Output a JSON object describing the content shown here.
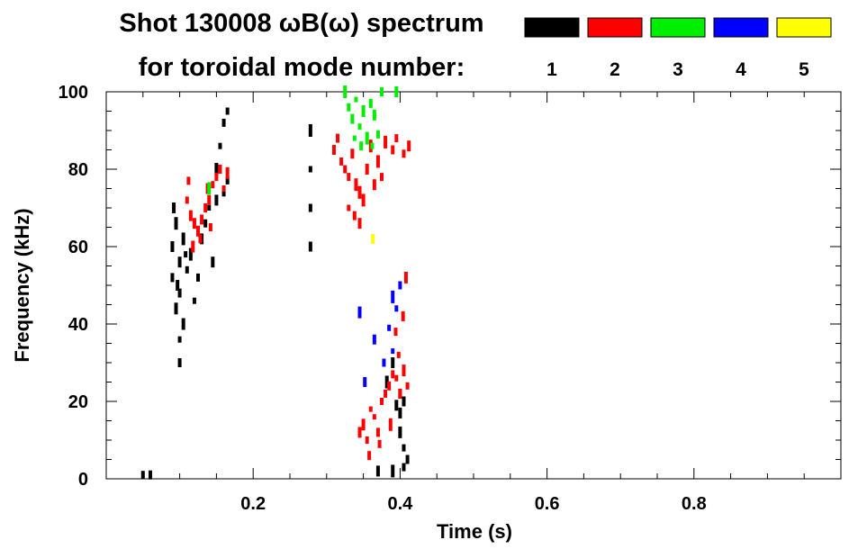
{
  "chart_data": {
    "type": "heatmap",
    "title": "Shot 130008 ωB(ω) spectrum",
    "subtitle": "for toroidal mode number:",
    "xlabel": "Time (s)",
    "ylabel": "Frequency (kHz)",
    "xlim": [
      0.0,
      1.0
    ],
    "ylim": [
      0,
      100
    ],
    "x_ticks": [
      {
        "value": 0.2,
        "label": "0.2"
      },
      {
        "value": 0.4,
        "label": "0.4"
      },
      {
        "value": 0.6,
        "label": "0.6"
      },
      {
        "value": 0.8,
        "label": "0.8"
      }
    ],
    "y_ticks": [
      {
        "value": 0,
        "label": "0"
      },
      {
        "value": 20,
        "label": "20"
      },
      {
        "value": 40,
        "label": "40"
      },
      {
        "value": 60,
        "label": "60"
      },
      {
        "value": 80,
        "label": "80"
      },
      {
        "value": 100,
        "label": "100"
      }
    ],
    "legend": [
      {
        "label": "1",
        "color": "#000000"
      },
      {
        "label": "2",
        "color": "#ff0000"
      },
      {
        "label": "3",
        "color": "#00ee00"
      },
      {
        "label": "4",
        "color": "#0000ff"
      },
      {
        "label": "5",
        "color": "#ffff00"
      }
    ],
    "series": [
      {
        "name": "1",
        "color": "#000000",
        "points": [
          [
            0.05,
            1
          ],
          [
            0.06,
            1
          ],
          [
            0.09,
            52
          ],
          [
            0.09,
            60
          ],
          [
            0.095,
            44
          ],
          [
            0.1,
            56
          ],
          [
            0.1,
            48
          ],
          [
            0.105,
            62
          ],
          [
            0.1,
            36
          ],
          [
            0.1,
            30
          ],
          [
            0.105,
            40
          ],
          [
            0.11,
            54
          ],
          [
            0.115,
            58
          ],
          [
            0.12,
            46
          ],
          [
            0.125,
            52
          ],
          [
            0.13,
            62
          ],
          [
            0.135,
            66
          ],
          [
            0.14,
            70
          ],
          [
            0.145,
            56
          ],
          [
            0.15,
            72
          ],
          [
            0.16,
            74
          ],
          [
            0.165,
            77
          ],
          [
            0.155,
            86
          ],
          [
            0.16,
            92
          ],
          [
            0.165,
            95
          ],
          [
            0.15,
            80
          ],
          [
            0.095,
            66
          ],
          [
            0.092,
            70
          ],
          [
            0.097,
            50
          ],
          [
            0.108,
            58
          ],
          [
            0.278,
            90
          ],
          [
            0.278,
            80
          ],
          [
            0.278,
            70
          ],
          [
            0.278,
            60
          ],
          [
            0.382,
            25
          ],
          [
            0.39,
            30
          ],
          [
            0.395,
            19
          ],
          [
            0.4,
            17
          ],
          [
            0.405,
            20
          ],
          [
            0.405,
            8
          ],
          [
            0.405,
            3
          ],
          [
            0.41,
            5
          ],
          [
            0.39,
            2
          ],
          [
            0.4,
            12
          ],
          [
            0.37,
            2
          ],
          [
            0.4,
            22
          ]
        ]
      },
      {
        "name": "2",
        "color": "#ff0000",
        "points": [
          [
            0.11,
            72
          ],
          [
            0.115,
            68
          ],
          [
            0.12,
            66
          ],
          [
            0.125,
            64
          ],
          [
            0.128,
            62
          ],
          [
            0.13,
            67
          ],
          [
            0.135,
            70
          ],
          [
            0.14,
            72
          ],
          [
            0.145,
            76
          ],
          [
            0.15,
            78
          ],
          [
            0.155,
            80
          ],
          [
            0.16,
            75
          ],
          [
            0.165,
            79
          ],
          [
            0.112,
            77
          ],
          [
            0.118,
            60
          ],
          [
            0.138,
            75
          ],
          [
            0.142,
            65
          ],
          [
            0.31,
            85
          ],
          [
            0.315,
            88
          ],
          [
            0.32,
            82
          ],
          [
            0.325,
            80
          ],
          [
            0.33,
            78
          ],
          [
            0.335,
            84
          ],
          [
            0.34,
            76
          ],
          [
            0.345,
            74
          ],
          [
            0.35,
            72
          ],
          [
            0.355,
            80
          ],
          [
            0.36,
            86
          ],
          [
            0.37,
            82
          ],
          [
            0.375,
            78
          ],
          [
            0.38,
            87
          ],
          [
            0.39,
            85
          ],
          [
            0.395,
            88
          ],
          [
            0.405,
            84
          ],
          [
            0.412,
            86
          ],
          [
            0.33,
            70
          ],
          [
            0.338,
            68
          ],
          [
            0.345,
            66
          ],
          [
            0.365,
            76
          ],
          [
            0.345,
            12
          ],
          [
            0.35,
            14
          ],
          [
            0.355,
            10
          ],
          [
            0.36,
            18
          ],
          [
            0.365,
            16
          ],
          [
            0.37,
            12
          ],
          [
            0.375,
            20
          ],
          [
            0.38,
            22
          ],
          [
            0.385,
            24
          ],
          [
            0.39,
            27
          ],
          [
            0.395,
            26
          ],
          [
            0.4,
            22
          ],
          [
            0.405,
            28
          ],
          [
            0.41,
            24
          ],
          [
            0.398,
            32
          ],
          [
            0.394,
            38
          ],
          [
            0.404,
            42
          ],
          [
            0.408,
            52
          ],
          [
            0.358,
            6
          ],
          [
            0.387,
            14
          ],
          [
            0.372,
            9
          ]
        ]
      },
      {
        "name": "3",
        "color": "#00ee00",
        "points": [
          [
            0.325,
            100
          ],
          [
            0.33,
            96
          ],
          [
            0.335,
            93
          ],
          [
            0.34,
            98
          ],
          [
            0.345,
            91
          ],
          [
            0.35,
            95
          ],
          [
            0.355,
            88
          ],
          [
            0.36,
            97
          ],
          [
            0.365,
            94
          ],
          [
            0.37,
            89
          ],
          [
            0.375,
            100
          ],
          [
            0.338,
            88
          ],
          [
            0.347,
            86
          ],
          [
            0.362,
            86
          ],
          [
            0.395,
            100
          ],
          [
            0.14,
            75
          ]
        ]
      },
      {
        "name": "4",
        "color": "#0000ff",
        "points": [
          [
            0.345,
            43
          ],
          [
            0.365,
            36
          ],
          [
            0.385,
            39
          ],
          [
            0.39,
            47
          ],
          [
            0.395,
            44
          ],
          [
            0.4,
            50
          ],
          [
            0.39,
            33
          ],
          [
            0.352,
            25
          ],
          [
            0.378,
            30
          ]
        ]
      },
      {
        "name": "5",
        "color": "#ffff00",
        "points": [
          [
            0.363,
            62
          ]
        ]
      }
    ]
  }
}
